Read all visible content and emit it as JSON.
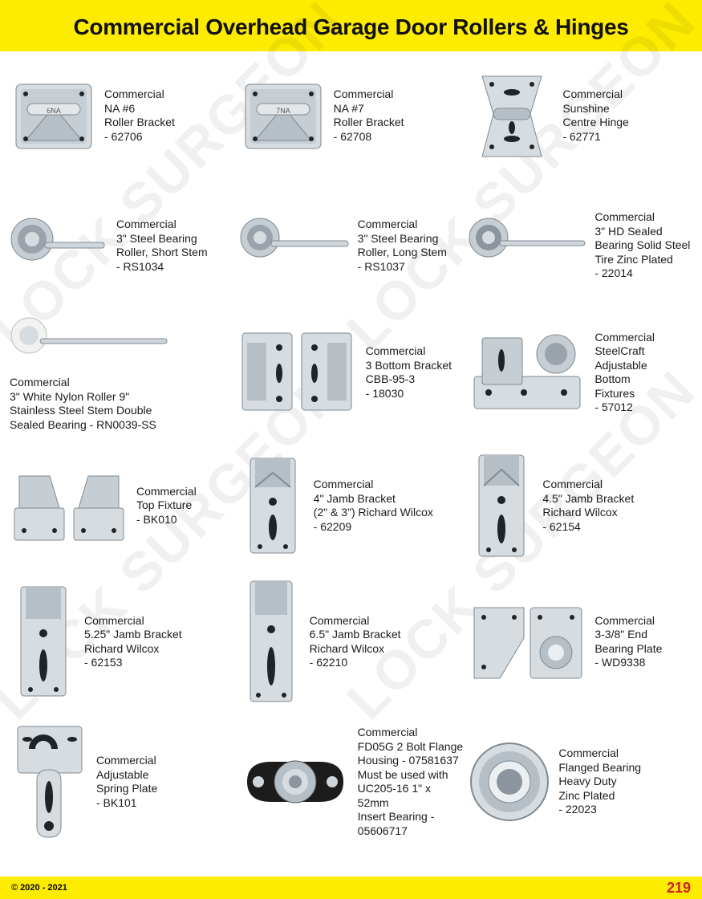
{
  "colors": {
    "band": "#fdeb00",
    "title": "#111111",
    "text": "#1b1b1b",
    "page_num": "#d11f2f",
    "metal_light": "#d7dce0",
    "metal_mid": "#b7bfc6",
    "metal_dark": "#7f8a92",
    "hole": "#1e2428",
    "nylon": "#f2f3f1",
    "black": "#1c1c1c",
    "watermark": "rgba(0,0,0,0.06)"
  },
  "typography": {
    "title_fontsize": 28,
    "label_fontsize": 14,
    "copyright_fontsize": 11,
    "pagenum_fontsize": 18
  },
  "header": {
    "title": "Commercial Overhead Garage Door Rollers & Hinges"
  },
  "watermark": {
    "text": "LOCK SURGEON"
  },
  "footer": {
    "copyright": "© 2020 - 2021",
    "page": "219"
  },
  "products": {
    "r1c1": {
      "lines": [
        "Commercial",
        "NA #6",
        "Roller Bracket",
        "- 62706"
      ]
    },
    "r1c2": {
      "lines": [
        "Commercial",
        "NA #7",
        "Roller Bracket",
        "- 62708"
      ]
    },
    "r1c3": {
      "lines": [
        "Commercial",
        "Sunshine",
        "Centre Hinge",
        "- 62771"
      ]
    },
    "r2c1": {
      "lines": [
        "Commercial",
        "3\" Steel Bearing",
        "Roller, Short Stem",
        "- RS1034"
      ]
    },
    "r2c2": {
      "lines": [
        "Commercial",
        "3\" Steel Bearing",
        "Roller, Long Stem",
        "- RS1037"
      ]
    },
    "r2c3": {
      "lines": [
        "Commercial",
        "3\" HD Sealed",
        "Bearing Solid Steel",
        "Tire Zinc Plated",
        "- 22014"
      ]
    },
    "r3c1": {
      "lines": [
        "Commercial",
        "3\" White Nylon Roller 9\"",
        "Stainless Steel Stem Double",
        "Sealed Bearing - RN0039-SS"
      ]
    },
    "r3c2": {
      "lines": [
        "Commercial",
        "3 Bottom Bracket",
        "CBB-95-3",
        "- 18030"
      ]
    },
    "r3c3": {
      "lines": [
        "Commercial",
        "SteelCraft",
        "Adjustable",
        "Bottom",
        "Fixtures",
        "- 57012"
      ]
    },
    "r4c1": {
      "lines": [
        "Commercial",
        "Top Fixture",
        "- BK010"
      ]
    },
    "r4c2": {
      "lines": [
        "Commercial",
        "4\" Jamb Bracket",
        "(2\" & 3\") Richard Wilcox",
        "- 62209"
      ]
    },
    "r4c3": {
      "lines": [
        "Commercial",
        "4.5\" Jamb Bracket",
        "Richard Wilcox",
        "- 62154"
      ]
    },
    "r5c1": {
      "lines": [
        "Commercial",
        "5.25\" Jamb Bracket",
        "Richard Wilcox",
        "- 62153"
      ]
    },
    "r5c2": {
      "lines": [
        "Commercial",
        "6.5\" Jamb Bracket",
        "Richard Wilcox",
        "- 62210"
      ]
    },
    "r5c3": {
      "lines": [
        "Commercial",
        "3-3/8\" End",
        "Bearing Plate",
        "- WD9338"
      ]
    },
    "r6c1": {
      "lines": [
        "Commercial",
        "Adjustable",
        "Spring Plate",
        "- BK101"
      ]
    },
    "r6c2": {
      "lines": [
        "Commercial",
        "FD05G 2 Bolt Flange",
        "Housing - 07581637",
        "Must be used with",
        "UC205-16 1\" x 52mm",
        "Insert Bearing - 05606717"
      ]
    },
    "r6c3": {
      "lines": [
        "Commercial",
        "Flanged Bearing",
        "Heavy Duty",
        "Zinc Plated",
        "- 22023"
      ]
    }
  }
}
